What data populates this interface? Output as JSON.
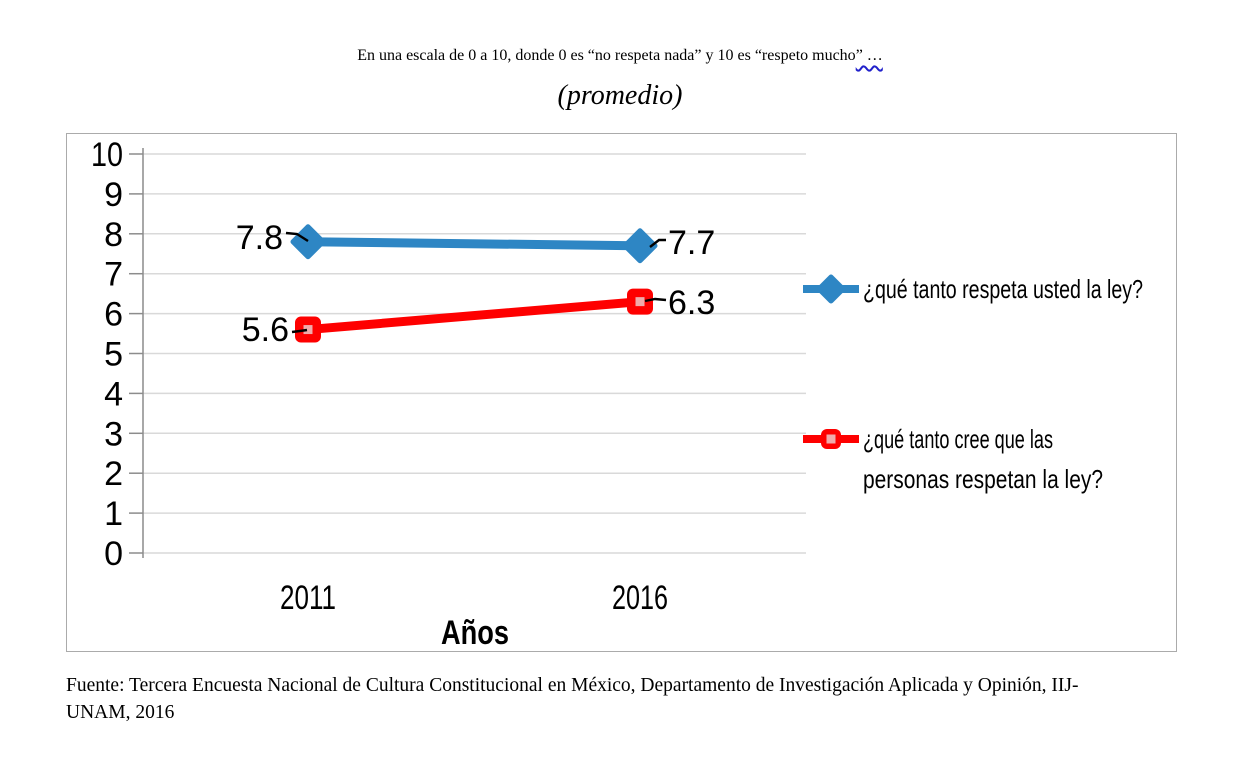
{
  "title": {
    "line1_normal": "En una escala de 0 a 10, donde 0 es “no respeta nada” y 10 es “respeto mucho",
    "line1_squiggle": "” …",
    "line2": "(promedio)"
  },
  "chart_data": {
    "type": "line",
    "categories": [
      "2011",
      "2016"
    ],
    "series": [
      {
        "name": "¿qué tanto respeta usted la ley?",
        "values": [
          7.8,
          7.7
        ],
        "color": "#2E86C4",
        "marker": "diamond"
      },
      {
        "name": "¿qué tanto cree que las personas respetan la ley?",
        "values": [
          5.6,
          6.3
        ],
        "color": "#FE0000",
        "marker": "square",
        "marker_inner_color": "#F0ABAB"
      }
    ],
    "data_labels": [
      [
        "7.8",
        "7.7"
      ],
      [
        "5.6",
        "6.3"
      ]
    ],
    "xlabel": "Años",
    "ylabel": "",
    "ylim": [
      0,
      10
    ],
    "yticks": [
      0,
      1,
      2,
      3,
      4,
      5,
      6,
      7,
      8,
      9,
      10
    ],
    "grid": true,
    "legend_position": "right",
    "legend_lines": [
      [
        "¿qué tanto respeta usted la ley?"
      ],
      [
        "¿qué tanto cree que las",
        "personas respetan la ley?"
      ]
    ],
    "grid_color": "#D9D9D9",
    "axis_color": "#8C8C8C",
    "label_color": "#000000"
  },
  "source": {
    "line1": "Fuente: Tercera Encuesta Nacional de Cultura Constitucional en México, Departamento de Investigación Aplicada y Opinión, IIJ-",
    "line2": "UNAM,  2016"
  }
}
